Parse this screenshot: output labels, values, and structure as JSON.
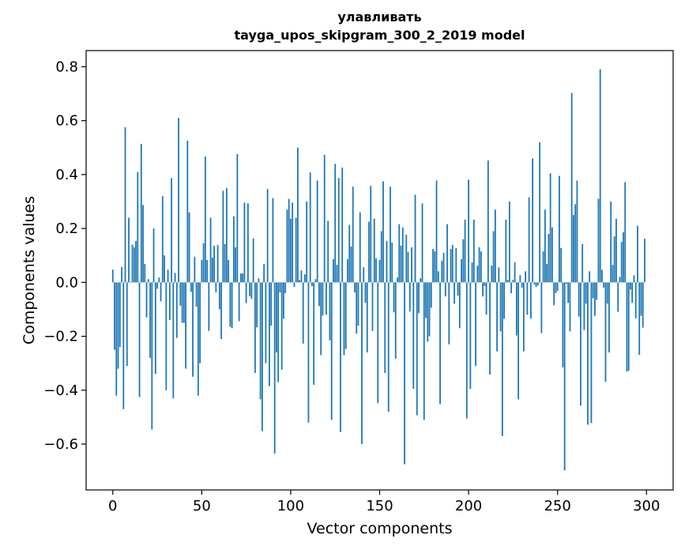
{
  "chart_data": {
    "type": "bar",
    "title": "улавливать",
    "subtitle": "tayga_upos_skipgram_300_2_2019 model",
    "xlabel": "Vector components",
    "ylabel": "Components values",
    "xlim": [
      -15,
      315
    ],
    "ylim": [
      -0.77,
      0.86
    ],
    "xticks": [
      0,
      50,
      100,
      150,
      200,
      250,
      300
    ],
    "xtick_labels": [
      "0",
      "50",
      "100",
      "150",
      "200",
      "250",
      "300"
    ],
    "yticks": [
      -0.6,
      -0.4,
      -0.2,
      0.0,
      0.2,
      0.4,
      0.6,
      0.8
    ],
    "ytick_labels": [
      "−0.6",
      "−0.4",
      "−0.2",
      "0.0",
      "0.2",
      "0.4",
      "0.6",
      "0.8"
    ],
    "grid": false,
    "color": "#1f77b4",
    "values": [
      0.047,
      -0.25,
      -0.42,
      -0.32,
      -0.24,
      0.057,
      -0.47,
      0.576,
      -0.31,
      0.24,
      -0.002,
      0.14,
      0.13,
      0.154,
      0.41,
      -0.425,
      0.514,
      0.287,
      0.068,
      -0.13,
      0.012,
      -0.28,
      -0.546,
      0.2,
      -0.34,
      -0.024,
      0.018,
      -0.07,
      0.32,
      0.1,
      -0.4,
      0.047,
      -0.14,
      0.387,
      -0.43,
      0.035,
      -0.206,
      0.61,
      -0.086,
      -0.15,
      -0.15,
      -0.32,
      0.526,
      0.26,
      -0.035,
      -0.35,
      0.095,
      -0.09,
      -0.42,
      -0.3,
      0.083,
      0.145,
      0.467,
      0.083,
      -0.18,
      0.24,
      0.092,
      0.136,
      -0.037,
      0.139,
      -0.1,
      -0.21,
      0.34,
      0.142,
      0.35,
      0.083,
      -0.165,
      -0.17,
      0.245,
      0.13,
      0.476,
      -0.144,
      0.033,
      0.033,
      0.296,
      -0.077,
      0.293,
      -0.052,
      -0.061,
      0.163,
      -0.336,
      -0.167,
      0.015,
      -0.434,
      -0.552,
      0.068,
      -0.3,
      0.346,
      -0.385,
      -0.16,
      0.313,
      -0.635,
      -0.26,
      -0.37,
      -0.037,
      -0.324,
      -0.135,
      -0.04,
      0.27,
      0.31,
      0.236,
      0.296,
      -0.017,
      0.24,
      0.5,
      0.009,
      0.044,
      -0.227,
      0.03,
      0.3,
      -0.52,
      0.408,
      -0.014,
      -0.38,
      0.012,
      0.378,
      -0.088,
      -0.27,
      -0.123,
      0.473,
      -0.12,
      0.228,
      -0.215,
      -0.51,
      0.086,
      0.44,
      0.065,
      0.387,
      -0.555,
      0.426,
      -0.27,
      -0.247,
      0.086,
      0.213,
      0.133,
      0.355,
      -0.037,
      -0.19,
      -0.16,
      0.26,
      -0.6,
      0.056,
      -0.076,
      -0.26,
      0.225,
      0.358,
      -0.18,
      0.236,
      0.089,
      -0.448,
      0.083,
      0.19,
      0.375,
      -0.336,
      0.154,
      -0.48,
      0.355,
      0.148,
      -0.111,
      -0.283,
      0.018,
      0.216,
      0.136,
      0.204,
      -0.675,
      0.177,
      0.112,
      -0.108,
      0.13,
      -0.395,
      0.325,
      -0.493,
      -0.114,
      0.015,
      0.293,
      -0.51,
      -0.132,
      -0.22,
      -0.2,
      -0.094,
      0.124,
      0.115,
      0.378,
      0.041,
      -0.452,
      0.08,
      0.11,
      -0.052,
      0.216,
      -0.23,
      0.124,
      0.139,
      -0.079,
      0.127,
      -0.049,
      -0.17,
      0.086,
      0.16,
      0.233,
      -0.505,
      0.381,
      -0.395,
      0.074,
      0.233,
      -0.31,
      0.062,
      0.13,
      0.115,
      -0.052,
      -0.014,
      -0.12,
      0.452,
      -0.342,
      0.062,
      0.19,
      0.27,
      -0.256,
      0.056,
      -0.182,
      -0.57,
      -0.135,
      0.233,
      0.009,
      0.3,
      -0.04,
      0.009,
      0.074,
      -0.197,
      -0.434,
      0.027,
      -0.02,
      -0.256,
      0.041,
      -0.12,
      0.316,
      -0.135,
      0.46,
      -0.008,
      -0.017,
      -0.011,
      0.52,
      -0.188,
      0.115,
      0.27,
      0.068,
      0.18,
      0.405,
      0.204,
      -0.085,
      -0.04,
      -0.032,
      0.395,
      0.127,
      -0.315,
      -0.697,
      -0.005,
      -0.076,
      -0.182,
      0.703,
      0.25,
      0.29,
      0.378,
      -0.127,
      -0.457,
      0.142,
      -0.177,
      -0.079,
      -0.528,
      0.041,
      -0.522,
      -0.059,
      -0.124,
      -0.065,
      0.31,
      0.791,
      0.047,
      -0.02,
      -0.369,
      -0.079,
      -0.26,
      0.3,
      0.065,
      0.171,
      0.236,
      -0.109,
      0.02,
      0.15,
      0.186,
      0.372,
      -0.331,
      -0.328,
      -0.027,
      -0.076,
      0.026,
      -0.133,
      0.21,
      -0.269,
      -0.124,
      -0.168,
      0.162
    ]
  }
}
